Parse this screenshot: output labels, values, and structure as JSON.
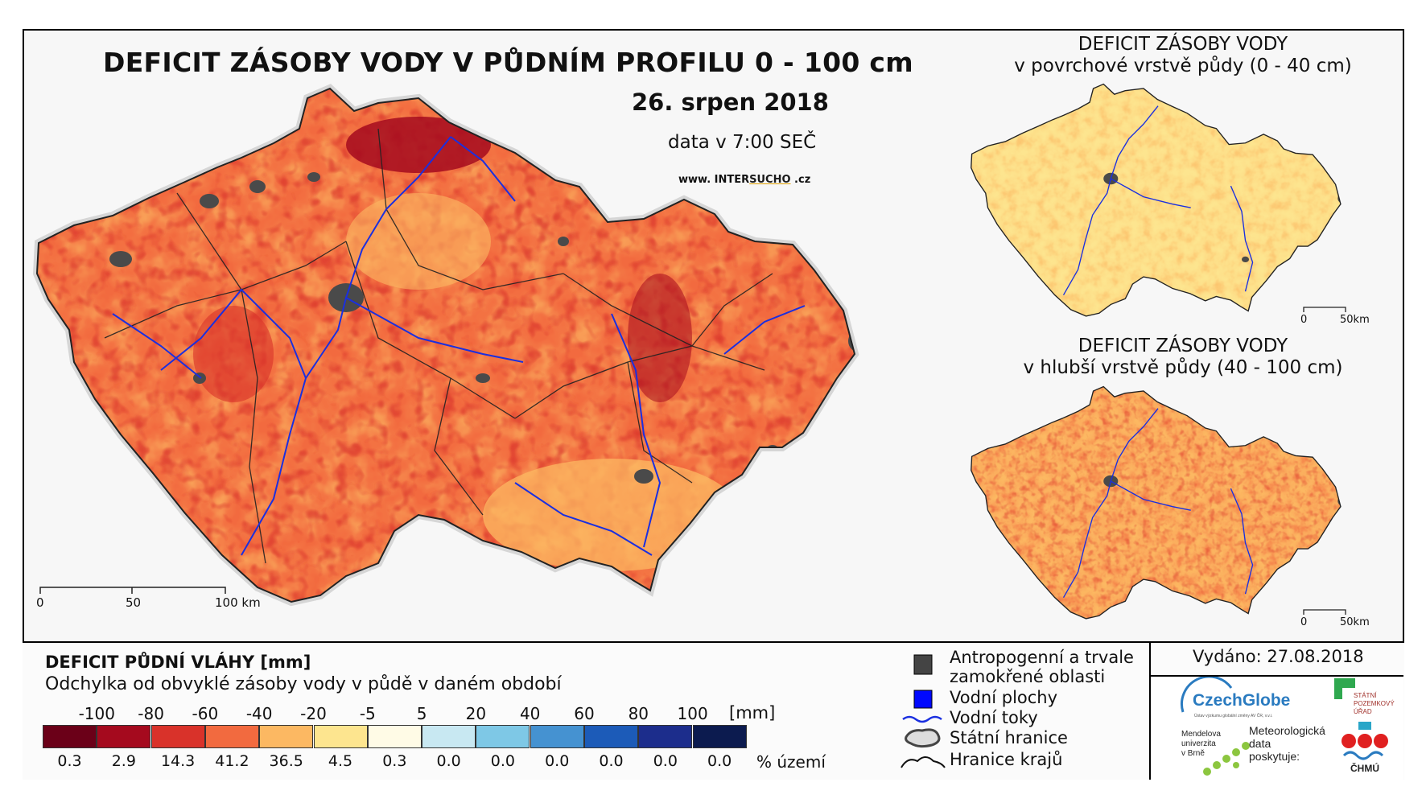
{
  "main_map": {
    "title": "DEFICIT ZÁSOBY VODY V PŮDNÍM PROFILU 0 - 100 cm",
    "date": "26. srpen 2018",
    "time": "data v 7:00 SEČ",
    "web_prefix": "www. INTER",
    "web_mid": "SUCHO",
    "web_suffix": " .cz",
    "scale": [
      "0",
      "50",
      "100 km"
    ]
  },
  "sub_maps": [
    {
      "title_line1": "DEFICIT ZÁSOBY VODY",
      "title_line2": "v povrchové vrstvě půdy (0 - 40 cm)",
      "scale": [
        "0",
        "50km"
      ]
    },
    {
      "title_line1": "DEFICIT ZÁSOBY VODY",
      "title_line2": "v hlubší vrstvě půdy (40 - 100 cm)",
      "scale": [
        "0",
        "50km"
      ]
    }
  ],
  "legend": {
    "heading": "DEFICIT PŮDNÍ VLÁHY [mm]",
    "subheading": "Odchylka od obvyklé zásoby vody v půdě v daném období",
    "thresholds": [
      "-100",
      "-80",
      "-60",
      "-40",
      "-20",
      "-5",
      "5",
      "20",
      "40",
      "60",
      "80",
      "100"
    ],
    "unit": "[mm]",
    "classes": [
      {
        "color": "#6b0018",
        "percent": "0.3"
      },
      {
        "color": "#a50a1e",
        "percent": "2.9"
      },
      {
        "color": "#d9322a",
        "percent": "14.3"
      },
      {
        "color": "#f26a3f",
        "percent": "41.2"
      },
      {
        "color": "#fcb862",
        "percent": "36.5"
      },
      {
        "color": "#fde58f",
        "percent": "4.5"
      },
      {
        "color": "#fffbe6",
        "percent": "0.3"
      },
      {
        "color": "#c8e8f2",
        "percent": "0.0"
      },
      {
        "color": "#7ec8e6",
        "percent": "0.0"
      },
      {
        "color": "#4592d1",
        "percent": "0.0"
      },
      {
        "color": "#1c5bb8",
        "percent": "0.0"
      },
      {
        "color": "#1c2d8c",
        "percent": "0.0"
      },
      {
        "color": "#0c1b4f",
        "percent": "0.0"
      }
    ],
    "percent_label": "% území"
  },
  "symbols": {
    "anthropogenic_line1": "Antropogenní a trvale",
    "anthropogenic_line2": "zamokřené oblasti",
    "water_bodies": "Vodní plochy",
    "rivers": "Vodní toky",
    "state_border": "Státní hranice",
    "region_border": "Hranice krajů"
  },
  "issued": "Vydáno: 27.08.2018",
  "logos": {
    "czechglobe": "CzechGlobe",
    "czechglobe_sub": "Ústav výzkumu globální změny AV ČR, v.v.i.",
    "spu_line1": "STÁTNÍ",
    "spu_line2": "POZEMKOVÝ",
    "spu_line3": "ÚŘAD",
    "mendel_line1": "Mendelova",
    "mendel_line2": "univerzita",
    "mendel_line3": "v Brně",
    "meteo_line1": "Meteorologická",
    "meteo_line2": "data",
    "meteo_line3": "poskytuje:",
    "chmu": "ČHMÚ"
  },
  "colors": {
    "river": "#1a2fe0",
    "urban": "#4a4a4a",
    "border": "#222222"
  }
}
